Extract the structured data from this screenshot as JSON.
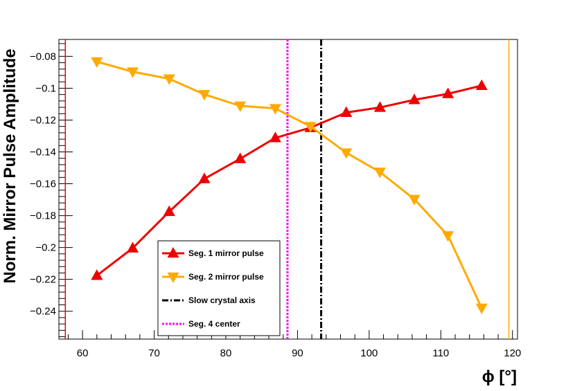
{
  "chart_data": {
    "type": "line",
    "title": "",
    "xlabel": "ϕ [°]",
    "ylabel": "Norm. Mirror Pulse Amplitude",
    "xlim": [
      56.7,
      120.7
    ],
    "ylim": [
      -0.2575,
      -0.0694
    ],
    "x_ticks": [
      60,
      70,
      80,
      90,
      100,
      110,
      120
    ],
    "x_tick_labels": [
      "60",
      "70",
      "80",
      "90",
      "100",
      "110",
      "120"
    ],
    "y_ticks": [
      -0.08,
      -0.1,
      -0.12,
      -0.14,
      -0.16,
      -0.18,
      -0.2,
      -0.22,
      -0.24
    ],
    "y_tick_labels": [
      "−0.08",
      "−0.1",
      "−0.12",
      "−0.14",
      "−0.16",
      "−0.18",
      "−0.2",
      "−0.22",
      "−0.24"
    ],
    "grid": false,
    "legend_position": "bottom-center",
    "series": [
      {
        "name": "Seg. 1 mirror pulse",
        "color": "#ee0000",
        "marker": "triangle-up",
        "x": [
          62.0,
          67.0,
          72.1,
          77.0,
          82.0,
          86.9,
          91.8,
          96.8,
          101.5,
          106.3,
          111.0,
          115.7
        ],
        "y": [
          -0.2176,
          -0.2004,
          -0.1775,
          -0.1569,
          -0.1443,
          -0.1312,
          -0.1248,
          -0.1153,
          -0.1121,
          -0.1073,
          -0.1035,
          -0.0984
        ]
      },
      {
        "name": "Seg. 2 mirror pulse",
        "color": "#ffaa00",
        "marker": "triangle-down",
        "x": [
          62.0,
          67.0,
          72.1,
          77.0,
          82.0,
          86.9,
          91.8,
          96.8,
          101.5,
          106.3,
          111.0,
          115.7
        ],
        "y": [
          -0.0833,
          -0.0897,
          -0.0941,
          -0.1039,
          -0.1111,
          -0.1127,
          -0.124,
          -0.1405,
          -0.1526,
          -0.1697,
          -0.1925,
          -0.238
        ]
      }
    ],
    "reference_lines": [
      {
        "name": "Slow crystal axis",
        "x": 93.3,
        "color": "#000000",
        "style": "dash-dot",
        "in_legend": true
      },
      {
        "name": "Seg. 4 center",
        "x": 88.6,
        "color": "#ff00ff",
        "style": "dotted",
        "in_legend": true
      },
      {
        "name": "left boundary",
        "x": 57.6,
        "color": "#ee0000",
        "style": "solid",
        "in_legend": false
      },
      {
        "name": "right boundary",
        "x": 119.5,
        "color": "#ffaa00",
        "style": "solid",
        "in_legend": false
      }
    ]
  }
}
